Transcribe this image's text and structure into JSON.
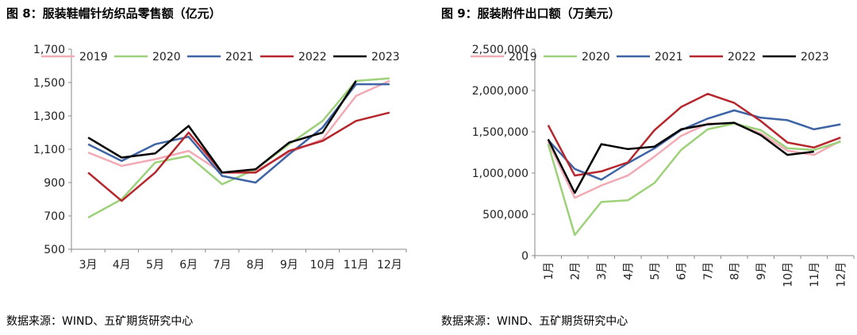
{
  "colors": {
    "2019": "#f2aab5",
    "2020": "#9dd17a",
    "2021": "#3e64a6",
    "2022": "#b5272d",
    "2023": "#000000"
  },
  "chart_data": [
    {
      "type": "line",
      "title": "图 8：服装鞋帽针纺织品零售额（亿元）",
      "source": "数据来源：WIND、五矿期货研究中心",
      "categories": [
        "3月",
        "4月",
        "5月",
        "6月",
        "7月",
        "8月",
        "9月",
        "10月",
        "11月",
        "12月"
      ],
      "ylim": [
        500,
        1700
      ],
      "yticks": [
        500,
        700,
        900,
        1100,
        1300,
        1500,
        1700
      ],
      "ytick_labels": [
        "500",
        "700",
        "900",
        "1,100",
        "1,300",
        "1,500",
        "1,700"
      ],
      "grid": false,
      "legend": "top",
      "series": [
        {
          "name": "2019",
          "values": [
            1080,
            1000,
            1040,
            1090,
            960,
            970,
            1080,
            1160,
            1420,
            1510
          ]
        },
        {
          "name": "2020",
          "values": [
            690,
            800,
            1020,
            1060,
            890,
            980,
            1130,
            1270,
            1510,
            1525
          ]
        },
        {
          "name": "2021",
          "values": [
            1130,
            1030,
            1130,
            1175,
            940,
            900,
            1070,
            1230,
            1490,
            1490
          ]
        },
        {
          "name": "2022",
          "values": [
            960,
            790,
            960,
            1200,
            960,
            960,
            1090,
            1150,
            1270,
            1320
          ]
        },
        {
          "name": "2023",
          "values": [
            1170,
            1050,
            1075,
            1240,
            960,
            980,
            1140,
            1200,
            1510,
            null
          ]
        }
      ]
    },
    {
      "type": "line",
      "title": "图 9：服装附件出口额（万美元）",
      "source": "数据来源：WIND、五矿期货研究中心",
      "categories": [
        "1月",
        "2月",
        "3月",
        "4月",
        "5月",
        "6月",
        "7月",
        "8月",
        "9月",
        "10月",
        "11月",
        "12月"
      ],
      "ylim": [
        0,
        2500000
      ],
      "yticks": [
        0,
        500000,
        1000000,
        1500000,
        2000000,
        2500000
      ],
      "ytick_labels": [
        "0",
        "500,000",
        "1,000,000",
        "1,500,000",
        "2,000,000",
        "2,500,000"
      ],
      "grid": false,
      "legend": "top",
      "series": [
        {
          "name": "2019",
          "values": [
            1380000,
            700000,
            850000,
            970000,
            1200000,
            1450000,
            1600000,
            1600000,
            1480000,
            1270000,
            1220000,
            1390000
          ]
        },
        {
          "name": "2020",
          "values": [
            1350000,
            250000,
            650000,
            670000,
            880000,
            1280000,
            1530000,
            1600000,
            1520000,
            1300000,
            1280000,
            1380000
          ]
        },
        {
          "name": "2021",
          "values": [
            1400000,
            1050000,
            920000,
            1120000,
            1300000,
            1520000,
            1660000,
            1760000,
            1670000,
            1640000,
            1530000,
            1590000
          ]
        },
        {
          "name": "2022",
          "values": [
            1580000,
            970000,
            1020000,
            1130000,
            1520000,
            1800000,
            1960000,
            1850000,
            1630000,
            1370000,
            1310000,
            1430000
          ]
        },
        {
          "name": "2023",
          "values": [
            1410000,
            760000,
            1350000,
            1290000,
            1320000,
            1530000,
            1590000,
            1610000,
            1460000,
            1220000,
            1260000,
            null
          ]
        }
      ]
    }
  ]
}
